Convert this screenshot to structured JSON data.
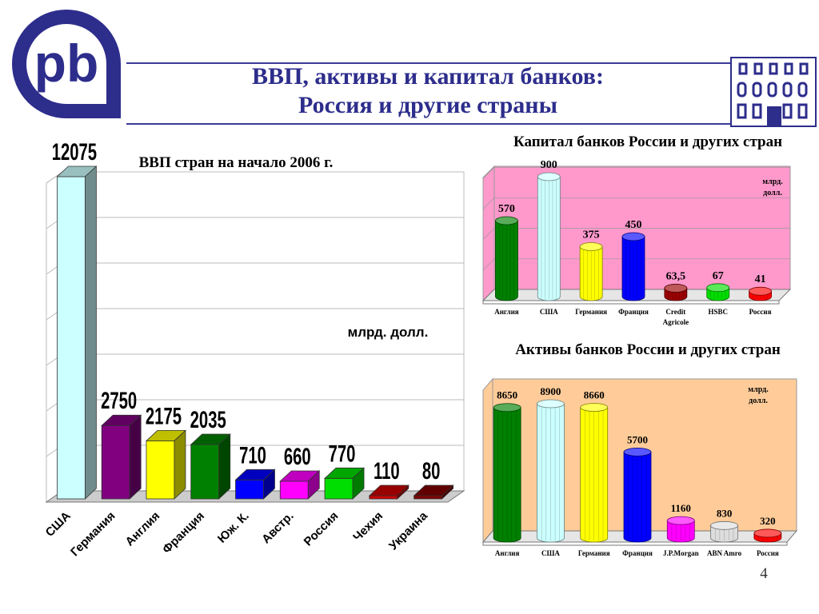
{
  "header": {
    "title_line1": "ВВП, активы и капитал банков:",
    "title_line2": "Россия и другие страны",
    "logo_text": "pb",
    "logo_icon": "pb-logo-icon",
    "building_icon": "bank-building-icon",
    "accent_color": "#2d2d8c"
  },
  "page_number": "4",
  "chart_data": [
    {
      "id": "gdp",
      "type": "bar",
      "title": "ВВП стран на начало 2006 г.",
      "unit": "млрд. долл.",
      "categories": [
        "США",
        "Германия",
        "Англия",
        "Франция",
        "Юж. К.",
        "Австр.",
        "Россия",
        "Чехия",
        "Украина"
      ],
      "values": [
        12075,
        2750,
        2175,
        2035,
        710,
        660,
        770,
        110,
        80
      ],
      "value_labels": [
        "12075",
        "2750",
        "2175",
        "2035",
        "710",
        "660",
        "770",
        "110",
        "80"
      ],
      "colors": [
        "#ccffff",
        "#800080",
        "#ffff00",
        "#008000",
        "#0000ff",
        "#ff00ff",
        "#00dd00",
        "#cc0000",
        "#800000"
      ],
      "ylim": [
        0,
        12075
      ],
      "grid": true,
      "background": "#ffffff"
    },
    {
      "id": "capital",
      "type": "bar",
      "title": "Капитал банков России  и других стран",
      "unit_line1": "млрд.",
      "unit_line2": "долл.",
      "categories": [
        "Англия",
        "США",
        "Германия",
        "Франция",
        "Credit Agricole",
        "HSBC",
        "Россия"
      ],
      "category_labels": [
        [
          "Англия"
        ],
        [
          "США"
        ],
        [
          "Германия"
        ],
        [
          "Франция"
        ],
        [
          "Credit",
          "Agricole"
        ],
        [
          "HSBC"
        ],
        [
          "Россия"
        ]
      ],
      "values": [
        570,
        900,
        375,
        450,
        63.5,
        67,
        41
      ],
      "value_labels": [
        "570",
        "900",
        "375",
        "450",
        "63,5",
        "67",
        "41"
      ],
      "colors": [
        "#008000",
        "#ccffff",
        "#ffff00",
        "#0000ff",
        "#990000",
        "#00dd00",
        "#ff0000"
      ],
      "ylim": [
        0,
        900
      ],
      "grid": true,
      "background": "#ff99cc"
    },
    {
      "id": "assets",
      "type": "bar",
      "title": "Активы банков России   и других стран",
      "unit_line1": "млрд.",
      "unit_line2": "долл.",
      "categories": [
        "Англия",
        "США",
        "Германия",
        "Франция",
        "J.P.Morgan",
        "ABN Amro",
        "Россия"
      ],
      "category_labels": [
        [
          "Англия"
        ],
        [
          "США"
        ],
        [
          "Германия"
        ],
        [
          "Франция"
        ],
        [
          "J.P.Morgan"
        ],
        [
          "ABN Amro"
        ],
        [
          "Россия"
        ]
      ],
      "values": [
        8650,
        8900,
        8660,
        5700,
        1160,
        830,
        320
      ],
      "value_labels": [
        "8650",
        "8900",
        "8660",
        "5700",
        "1160",
        "830",
        "320"
      ],
      "colors": [
        "#008000",
        "#ccffff",
        "#ffff00",
        "#0000ff",
        "#ff00ff",
        "#dddddd",
        "#ff0000"
      ],
      "ylim": [
        0,
        8900
      ],
      "grid": false,
      "background": "#ffcc99"
    }
  ]
}
